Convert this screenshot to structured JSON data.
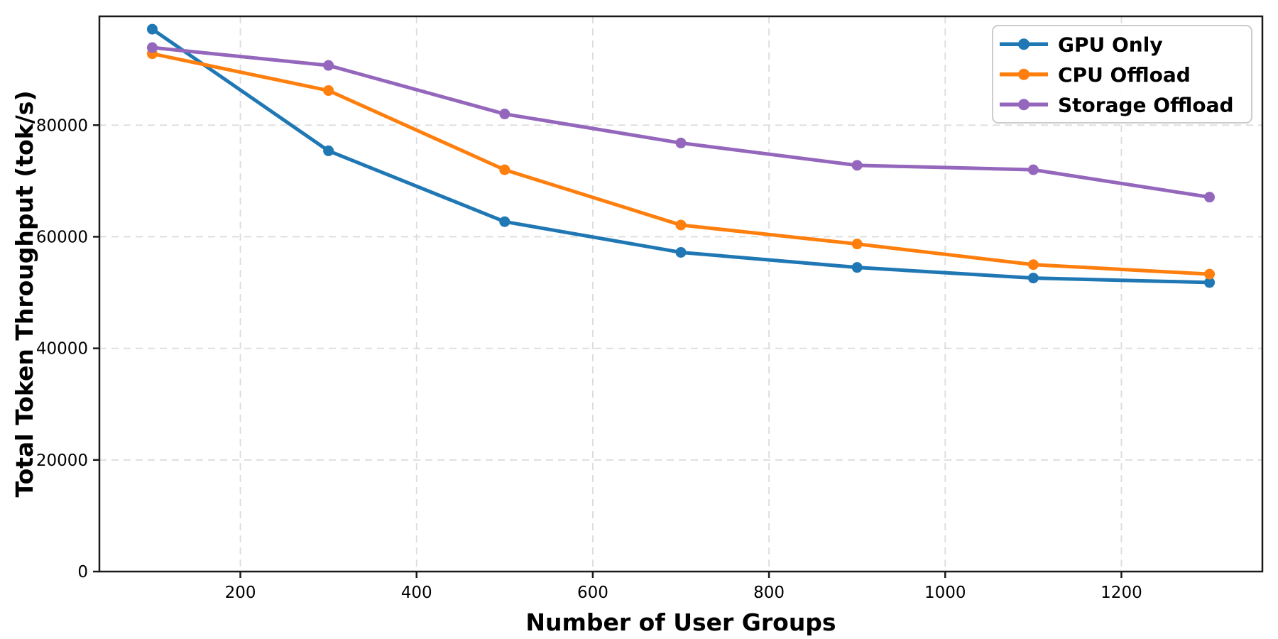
{
  "figure": {
    "background": "#ffffff"
  },
  "chart_data": {
    "type": "line",
    "title": "",
    "xlabel": "Number of User Groups",
    "ylabel": "Total Token Throughput (tok/s)",
    "x": [
      100,
      300,
      500,
      700,
      900,
      1100,
      1300
    ],
    "series": [
      {
        "name": "GPU Only",
        "color": "#1f77b4",
        "values": [
          97200,
          75400,
          62700,
          57200,
          54500,
          52600,
          51800
        ]
      },
      {
        "name": "CPU Offload",
        "color": "#ff7f0e",
        "values": [
          92800,
          86200,
          72000,
          62100,
          58700,
          55000,
          53300
        ]
      },
      {
        "name": "Storage Offload",
        "color": "#9467bd",
        "values": [
          93900,
          90700,
          82000,
          76800,
          72800,
          72000,
          67100
        ]
      }
    ],
    "xlim": [
      40,
      1360
    ],
    "ylim": [
      0,
      99500
    ],
    "xticks": [
      200,
      400,
      600,
      800,
      1000,
      1200
    ],
    "yticks": [
      0,
      20000,
      40000,
      60000,
      80000
    ],
    "grid": true,
    "grid_color": "#dcdcdc",
    "axis_color": "#1a1a1a",
    "legend_position": "upper right",
    "legend_border_color": "#cccccc",
    "legend_background": "#ffffff",
    "marker": "circle"
  }
}
